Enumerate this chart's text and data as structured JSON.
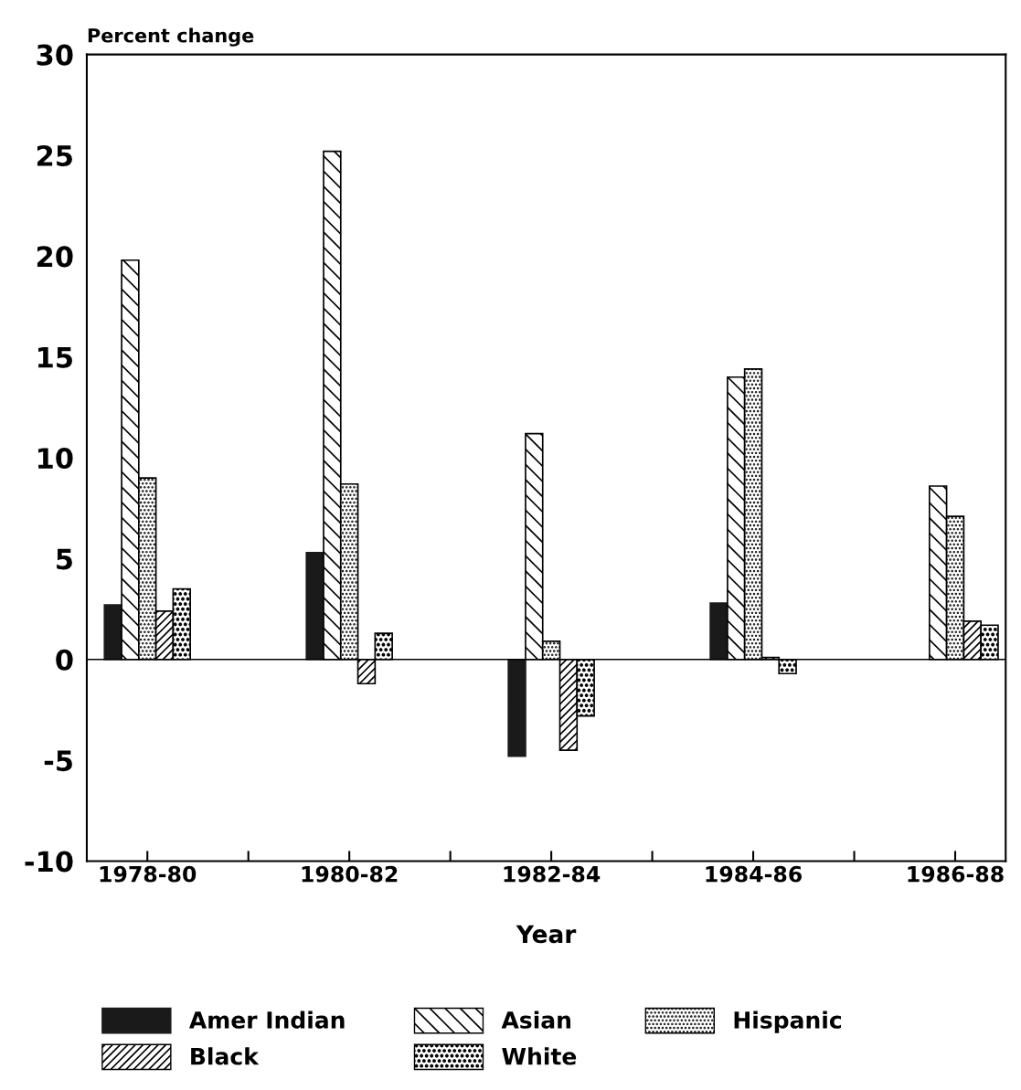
{
  "chart_data": {
    "type": "bar",
    "ylabel": "Percent change",
    "xlabel": "Year",
    "categories": [
      "1978-80",
      "1980-82",
      "1982-84",
      "1984-86",
      "1986-88"
    ],
    "series": [
      {
        "name": "Amer Indian",
        "color": "#1a1a1a",
        "values": [
          2.7,
          5.3,
          -4.8,
          2.8,
          null
        ]
      },
      {
        "name": "Asian",
        "color": "#000000",
        "values": [
          19.8,
          25.2,
          11.2,
          14.0,
          8.6
        ]
      },
      {
        "name": "Hispanic",
        "color": "#000000",
        "values": [
          9.0,
          8.7,
          0.9,
          14.4,
          7.1
        ]
      },
      {
        "name": "Black",
        "color": "#000000",
        "values": [
          2.4,
          -1.2,
          -4.5,
          0.1,
          1.9
        ]
      },
      {
        "name": "White",
        "color": "#000000",
        "values": [
          3.5,
          1.3,
          -2.8,
          -0.7,
          1.7
        ]
      }
    ],
    "ylim": [
      -10,
      30
    ],
    "yticks": [
      -10,
      -5,
      0,
      5,
      10,
      15,
      20,
      25,
      30
    ],
    "ref_lines": [
      {
        "axis": "y",
        "value": 0
      }
    ],
    "grid": false,
    "legend": "bottom"
  }
}
